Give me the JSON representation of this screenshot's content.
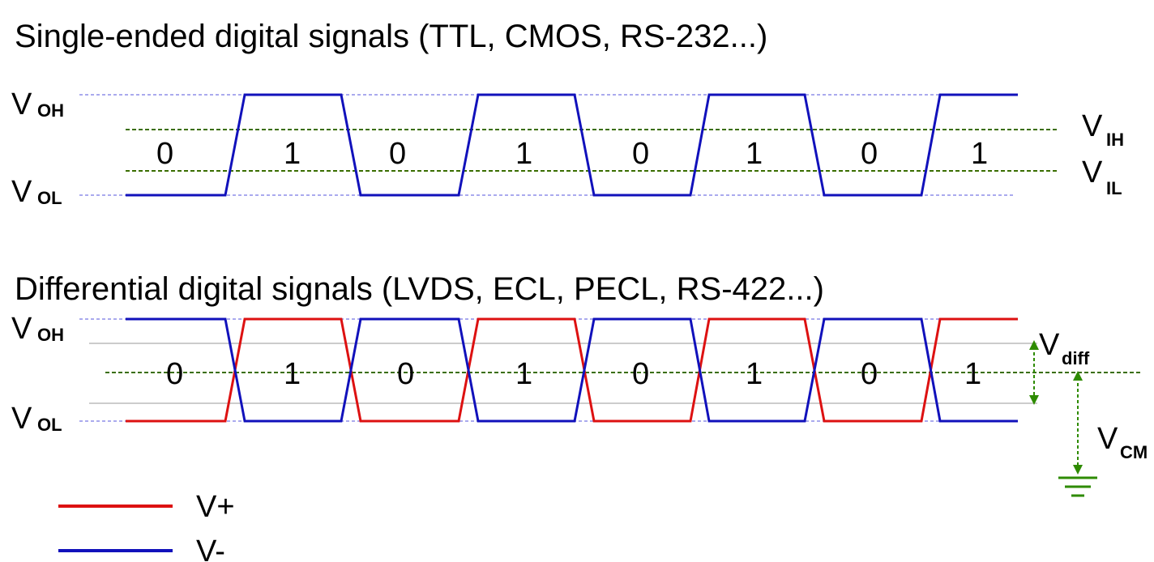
{
  "single_ended": {
    "title": "Single-ended digital signals (TTL, CMOS, RS-232...)",
    "v_oh": {
      "main": "V",
      "sub": "OH"
    },
    "v_ol": {
      "main": "V",
      "sub": "OL"
    },
    "v_ih": {
      "main": "V",
      "sub": "IH"
    },
    "v_il": {
      "main": "V",
      "sub": "IL"
    },
    "bits": [
      "0",
      "1",
      "0",
      "1",
      "0",
      "1",
      "0",
      "1"
    ]
  },
  "differential": {
    "title": "Differential digital signals (LVDS, ECL, PECL, RS-422...)",
    "v_oh": {
      "main": "V",
      "sub": "OH"
    },
    "v_ol": {
      "main": "V",
      "sub": "OL"
    },
    "v_diff": {
      "main": "V",
      "sub": "diff"
    },
    "v_cm": {
      "main": "V",
      "sub": "CM"
    },
    "bits": [
      "0",
      "1",
      "0",
      "1",
      "0",
      "1",
      "0",
      "1"
    ]
  },
  "legend": {
    "items": [
      {
        "label": "V+",
        "color": "#dd1111"
      },
      {
        "label": "V-",
        "color": "#1111bb"
      }
    ]
  },
  "colors": {
    "positive": "#dd1111",
    "negative": "#1111bb",
    "threshold": "#3a6e00",
    "rail": "#aaaaee",
    "guide": "#bbbbbb",
    "ground": "#2e8b00"
  }
}
